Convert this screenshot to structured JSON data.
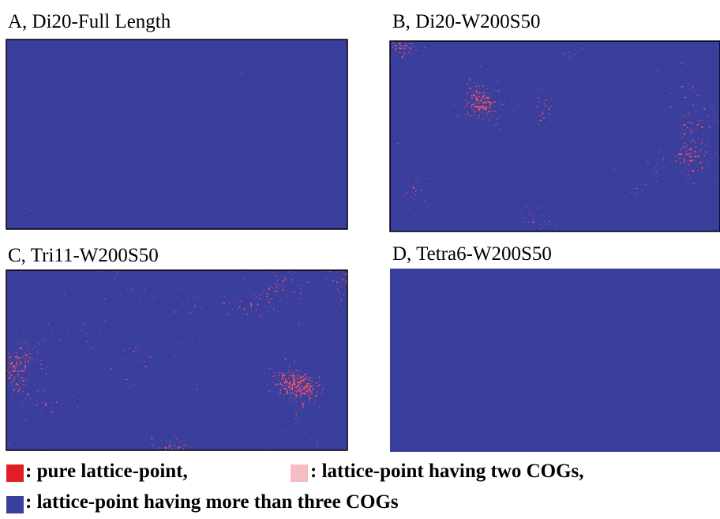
{
  "panels": [
    {
      "label": "A, Di20-Full Length"
    },
    {
      "label": "B, Di20-W200S50"
    },
    {
      "label": "C, Tri11-W200S50"
    },
    {
      "label": "D, Tetra6-W200S50"
    }
  ],
  "legend": [
    {
      "text": ": pure lattice-point,",
      "color": "#e21d25"
    },
    {
      "text": ": lattice-point having two COGs,",
      "color": "#f5bcc4"
    },
    {
      "text": ": lattice-point having more than three COGs",
      "color": "#3a3f9e"
    }
  ]
}
